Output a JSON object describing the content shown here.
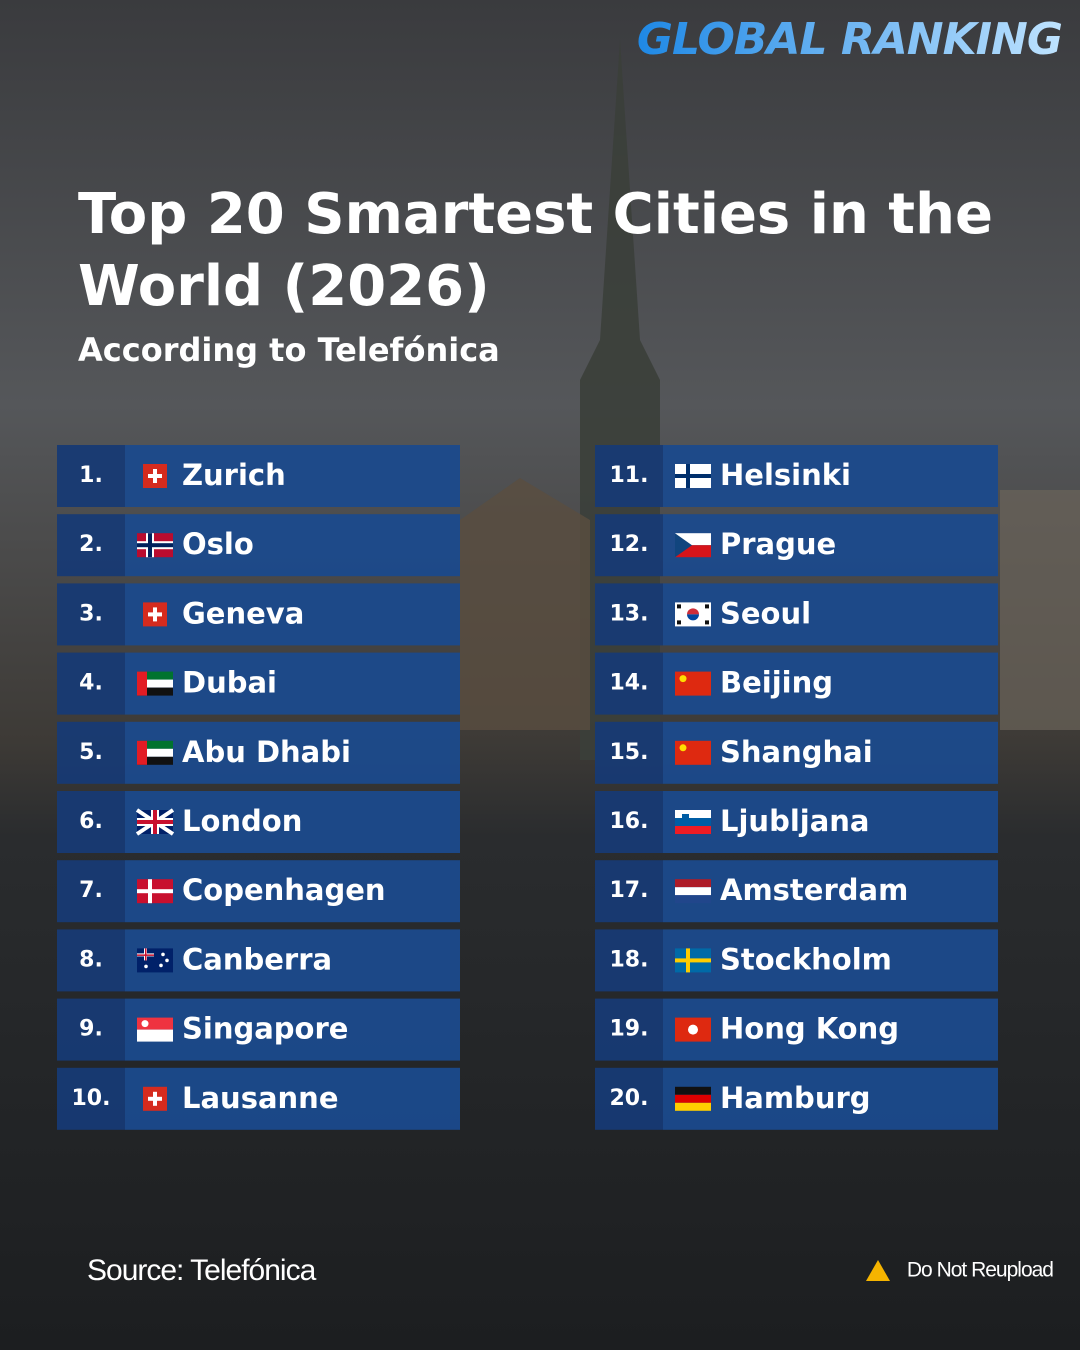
{
  "brand": "GLOBAL RANKING",
  "header": {
    "title_line1": "Top 20 Smartest Cities in the",
    "title_line2": "World (2026)",
    "subtitle": "According to Telefónica"
  },
  "rankings": [
    {
      "rank": "1.",
      "city": "Zurich"
    },
    {
      "rank": "2.",
      "city": "Oslo"
    },
    {
      "rank": "3.",
      "city": "Geneva"
    },
    {
      "rank": "4.",
      "city": "Dubai"
    },
    {
      "rank": "5.",
      "city": "Abu Dhabi"
    },
    {
      "rank": "6.",
      "city": "London"
    },
    {
      "rank": "7.",
      "city": "Copenhagen"
    },
    {
      "rank": "8.",
      "city": "Canberra"
    },
    {
      "rank": "9.",
      "city": "Singapore"
    },
    {
      "rank": "10.",
      "city": "Lausanne"
    },
    {
      "rank": "11.",
      "city": "Helsinki"
    },
    {
      "rank": "12.",
      "city": "Prague"
    },
    {
      "rank": "13.",
      "city": "Seoul"
    },
    {
      "rank": "14.",
      "city": "Beijing"
    },
    {
      "rank": "15.",
      "city": "Shanghai"
    },
    {
      "rank": "16.",
      "city": "Ljubljana"
    },
    {
      "rank": "17.",
      "city": "Amsterdam"
    },
    {
      "rank": "18.",
      "city": "Stockholm"
    },
    {
      "rank": "19.",
      "city": "Hong Kong"
    },
    {
      "rank": "20.",
      "city": "Hamburg"
    }
  ],
  "footer": {
    "source": "Source: Telefónica",
    "notice": "Do Not Reupload"
  }
}
